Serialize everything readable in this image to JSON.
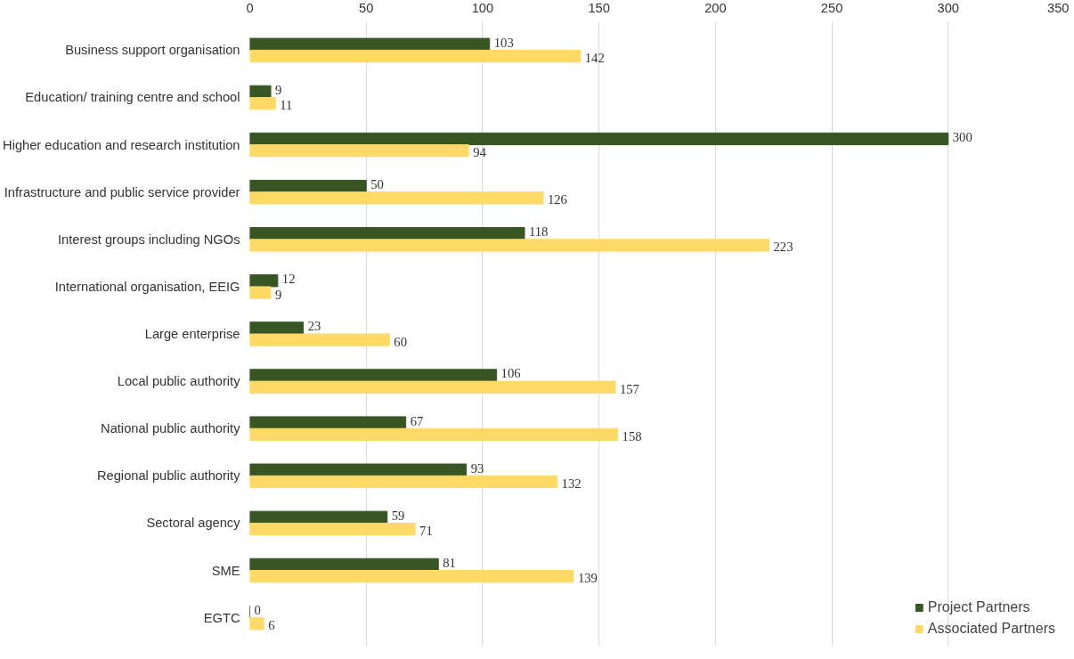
{
  "chart_data": {
    "type": "bar",
    "orientation": "horizontal",
    "categories": [
      "Business support organisation",
      "Education/ training centre and school",
      "Higher education and research institution",
      "Infrastructure and public service provider",
      "Interest groups including NGOs",
      "International organisation, EEIG",
      "Large enterprise",
      "Local public authority",
      "National public authority",
      "Regional public authority",
      "Sectoral agency",
      "SME",
      "EGTC"
    ],
    "series": [
      {
        "name": "Project Partners",
        "color": "#375623",
        "values": [
          103,
          9,
          300,
          50,
          118,
          12,
          23,
          106,
          67,
          93,
          59,
          81,
          0
        ]
      },
      {
        "name": "Associated Partners",
        "color": "#ffd966",
        "values": [
          142,
          11,
          94,
          126,
          223,
          9,
          60,
          157,
          158,
          132,
          71,
          139,
          6
        ]
      }
    ],
    "xlim": [
      0,
      350
    ],
    "xticks": [
      0,
      50,
      100,
      150,
      200,
      250,
      300,
      350
    ],
    "grid": "x",
    "legend": "bottom right",
    "data_labels": true
  }
}
